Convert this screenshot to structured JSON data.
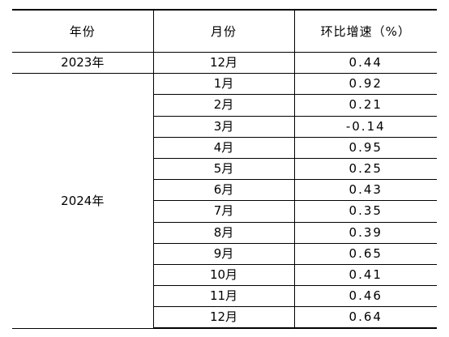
{
  "table": {
    "headers": {
      "year": "年份",
      "month": "月份",
      "rate": "环比增速（%）"
    },
    "groups": [
      {
        "year": "2023年",
        "rows": [
          {
            "month": "12月",
            "rate": "0.44"
          }
        ]
      },
      {
        "year": "2024年",
        "rows": [
          {
            "month": "1月",
            "rate": "0.92"
          },
          {
            "month": "2月",
            "rate": "0.21"
          },
          {
            "month": "3月",
            "rate": "-0.14"
          },
          {
            "month": "4月",
            "rate": "0.95"
          },
          {
            "month": "5月",
            "rate": "0.25"
          },
          {
            "month": "6月",
            "rate": "0.43"
          },
          {
            "month": "7月",
            "rate": "0.35"
          },
          {
            "month": "8月",
            "rate": "0.39"
          },
          {
            "month": "9月",
            "rate": "0.65"
          },
          {
            "month": "10月",
            "rate": "0.41"
          },
          {
            "month": "11月",
            "rate": "0.46"
          },
          {
            "month": "12月",
            "rate": "0.64"
          }
        ]
      }
    ]
  }
}
